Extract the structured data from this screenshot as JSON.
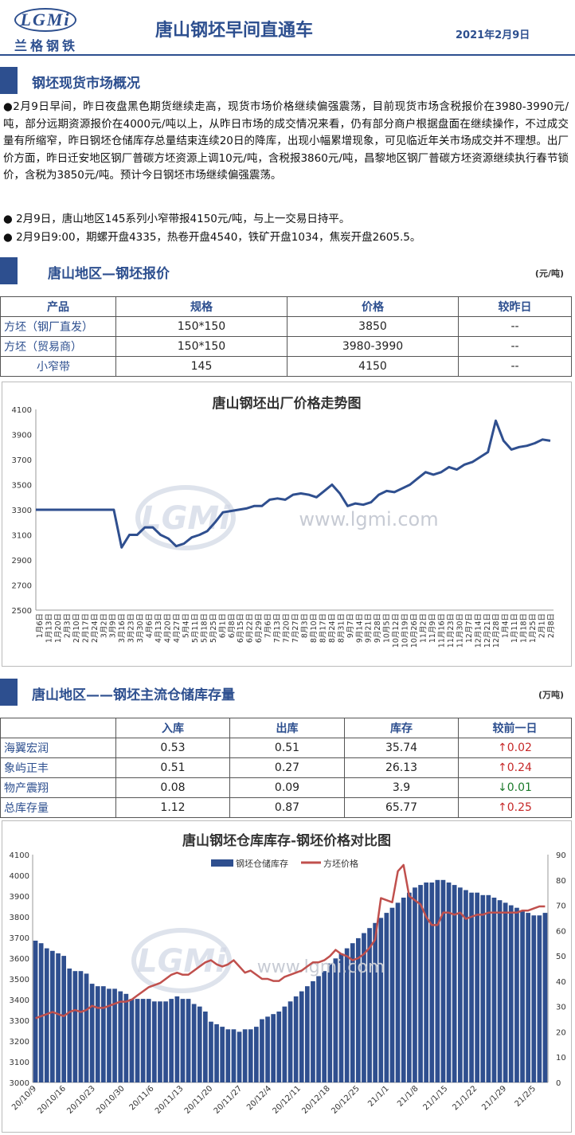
{
  "header": {
    "logo_text": "LGMi",
    "logo_cn": "兰格钢铁",
    "title": "唐山钢坯早间直通车",
    "date": "2021年2月9日"
  },
  "section1": {
    "title": "钢坯现货市场概况",
    "p1": "●2月9日早间，昨日夜盘黑色期货继续走高，现货市场价格继续偏强震荡，目前现货市场含税报价在3980-3990元/吨，部分远期资源报价在4000元/吨以上，从昨日市场的成交情况来看，仍有部分商户根据盘面在继续操作，不过成交量有所缩窄，昨日钢坯仓储库存总量结束连续20日的降库，出现小幅累增现象，可见临近年关市场成交并不理想。出厂价方面，昨日迁安地区钢厂普碳方坯资源上调10元/吨，含税报3860元/吨，昌黎地区钢厂普碳方坯资源继续执行春节锁价，含税为3850元/吨。预计今日钢坯市场继续偏强震荡。",
    "p2": "● 2月9日，唐山地区145系列小窄带报4150元/吨，与上一交易日持平。",
    "p3": "● 2月9日9:00，期螺开盘4335，热卷开盘4540，铁矿开盘1034，焦炭开盘2605.5。"
  },
  "section2": {
    "title": "唐山地区—钢坯报价",
    "unit": "(元/吨)",
    "headers": [
      "产品",
      "规格",
      "价格",
      "较昨日"
    ],
    "rows": [
      [
        "方坯（钢厂直发）",
        "150*150",
        "3850",
        "--"
      ],
      [
        "方坯（贸易商）",
        "150*150",
        "3980-3990",
        "--"
      ],
      [
        "小窄带",
        "145",
        "4150",
        "--"
      ]
    ]
  },
  "chart1_meta": {
    "watermark_logo": "LGMi",
    "watermark_url": "www.lgmi.com"
  },
  "section3": {
    "title": "唐山地区——钢坯主流仓储库存量",
    "unit": "(万吨)",
    "headers": [
      "",
      "入库",
      "出库",
      "库存",
      "较前一日"
    ],
    "rows": [
      [
        "海翼宏润",
        "0.53",
        "0.51",
        "35.74",
        "↑0.02"
      ],
      [
        "象屿正丰",
        "0.51",
        "0.27",
        "26.13",
        "↑0.24"
      ],
      [
        "物产震翔",
        "0.08",
        "0.09",
        "3.9",
        "↓0.01"
      ],
      [
        "总库存量",
        "1.12",
        "0.87",
        "65.77",
        "↑0.25"
      ]
    ]
  },
  "colors": {
    "brand": "#2d4f8f",
    "line1": "#2f4f8f",
    "bar": "#2f4f8f",
    "line2": "#c0504d",
    "up": "#c62828",
    "down": "#1b7a2b"
  },
  "chart_data": [
    {
      "type": "line",
      "title": "唐山钢坯出厂价格走势图",
      "ylim": [
        2500,
        4100
      ],
      "yticks": [
        2500,
        2700,
        2900,
        3100,
        3300,
        3500,
        3700,
        3900,
        4100
      ],
      "xticks": [
        "1月6日",
        "1月13日",
        "1月20日",
        "2月3日",
        "2月10日",
        "2月17日",
        "2月24日",
        "3月2日",
        "3月9日",
        "3月16日",
        "3月23日",
        "3月30日",
        "4月6日",
        "4月13日",
        "4月20日",
        "4月27日",
        "5月4日",
        "5月11日",
        "5月18日",
        "5月25日",
        "6月1日",
        "6月8日",
        "6月15日",
        "6月22日",
        "6月29日",
        "7月6日",
        "7月13日",
        "7月20日",
        "7月27日",
        "8月3日",
        "8月10日",
        "8月17日",
        "8月24日",
        "8月31日",
        "9月7日",
        "9月14日",
        "9月21日",
        "9月28日",
        "10月5日",
        "10月12日",
        "10月19日",
        "10月26日",
        "11月2日",
        "11月9日",
        "11月16日",
        "11月23日",
        "11月30日",
        "12月7日",
        "12月14日",
        "12月21日",
        "12月28日",
        "1月4日",
        "1月11日",
        "1月18日",
        "1月25日",
        "2月1日",
        "2月8日"
      ],
      "series": [
        {
          "values": [
            3300,
            3300,
            3300,
            3300,
            3300,
            3300,
            3300,
            3300,
            3300,
            3300,
            3300,
            3000,
            3100,
            3100,
            3160,
            3160,
            3100,
            3070,
            3010,
            3030,
            3080,
            3100,
            3130,
            3200,
            3280,
            3290,
            3300,
            3310,
            3330,
            3330,
            3380,
            3390,
            3380,
            3420,
            3430,
            3420,
            3400,
            3450,
            3500,
            3430,
            3330,
            3350,
            3340,
            3360,
            3420,
            3450,
            3440,
            3470,
            3500,
            3550,
            3600,
            3580,
            3600,
            3640,
            3620,
            3660,
            3680,
            3720,
            3760,
            4010,
            3850,
            3780,
            3800,
            3810,
            3830,
            3860,
            3850
          ]
        }
      ]
    },
    {
      "type": "bar+line",
      "title": "唐山钢坯仓库库存-钢坯价格对比图",
      "legend": [
        "钢坯仓储库存",
        "方坯价格"
      ],
      "xticks": [
        "20/10/9",
        "20/10/16",
        "20/10/23",
        "20/10/30",
        "20/11/6",
        "20/11/13",
        "20/11/20",
        "20/11/27",
        "20/12/4",
        "20/12/11",
        "20/12/18",
        "20/12/25",
        "21/1/1",
        "21/1/8",
        "21/1/15",
        "21/1/22",
        "21/1/29",
        "21/2/5"
      ],
      "left_axis": {
        "ylim": [
          3000,
          4100
        ],
        "ticks": [
          3000,
          3100,
          3200,
          3300,
          3400,
          3500,
          3600,
          3700,
          3800,
          3900,
          4000,
          4100
        ]
      },
      "right_axis": {
        "ylim": [
          0,
          90
        ],
        "ticks": [
          0,
          10,
          20,
          30,
          40,
          50,
          60,
          70,
          80,
          90
        ]
      },
      "bars": [
        56,
        55,
        53,
        52,
        51,
        50,
        45,
        44,
        44,
        43,
        39,
        38,
        38,
        37,
        37,
        36,
        35,
        33,
        33,
        33,
        33,
        32,
        32,
        32,
        33,
        34,
        33,
        33,
        31,
        30,
        28,
        24,
        23,
        22,
        21,
        21,
        20,
        21,
        21,
        22,
        25,
        26,
        27,
        28,
        30,
        32,
        34,
        36,
        38,
        40,
        42,
        44,
        47,
        49,
        51,
        53,
        55,
        57,
        59,
        61,
        63,
        65,
        67,
        69,
        71,
        73,
        75,
        77,
        78,
        79,
        79,
        80,
        80,
        79,
        78,
        77,
        76,
        75,
        75,
        74,
        74,
        73,
        72,
        71,
        70,
        69,
        68,
        67,
        66,
        66,
        67
      ],
      "line": [
        3310,
        3320,
        3330,
        3340,
        3330,
        3320,
        3340,
        3350,
        3340,
        3350,
        3370,
        3360,
        3360,
        3370,
        3380,
        3390,
        3390,
        3400,
        3420,
        3440,
        3460,
        3470,
        3480,
        3500,
        3520,
        3530,
        3520,
        3520,
        3540,
        3560,
        3580,
        3590,
        3570,
        3560,
        3570,
        3590,
        3560,
        3530,
        3540,
        3520,
        3500,
        3500,
        3490,
        3490,
        3510,
        3520,
        3530,
        3540,
        3560,
        3580,
        3580,
        3590,
        3610,
        3640,
        3620,
        3610,
        3590,
        3600,
        3620,
        3650,
        3690,
        3890,
        3880,
        3870,
        4020,
        4050,
        3900,
        3880,
        3860,
        3800,
        3760,
        3760,
        3820,
        3820,
        3810,
        3820,
        3790,
        3800,
        3810,
        3810,
        3820,
        3820,
        3820,
        3820,
        3820,
        3820,
        3830,
        3830,
        3840,
        3850,
        3850
      ]
    }
  ]
}
